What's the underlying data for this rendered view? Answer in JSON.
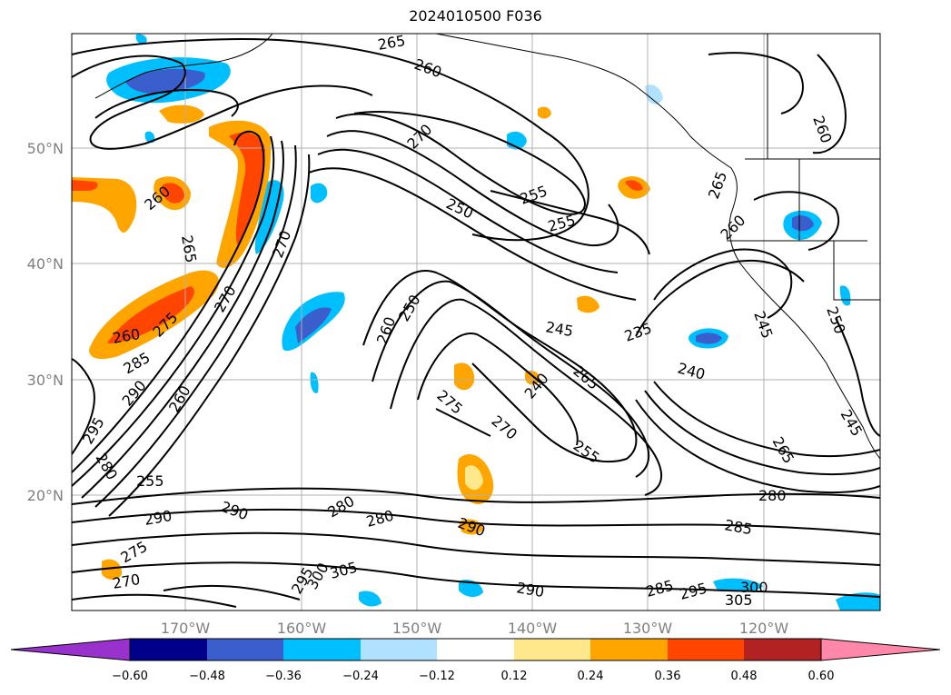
{
  "title": "2024010500 F036",
  "axes": {
    "lat_labels": [
      "50°N",
      "40°N",
      "30°N",
      "20°N"
    ],
    "lon_labels": [
      "170°W",
      "160°W",
      "150°W",
      "140°W",
      "130°W",
      "120°W"
    ]
  },
  "colorbar": {
    "ticks": [
      "−0.60",
      "−0.48",
      "−0.36",
      "−0.24",
      "−0.12",
      "0.12",
      "0.24",
      "0.36",
      "0.48",
      "0.60"
    ],
    "colors": [
      "#9932cc",
      "#00008b",
      "#3a5fcd",
      "#00bfff",
      "#b0e2ff",
      "#ffffff",
      "#ffe88c",
      "#ffa500",
      "#ff4500",
      "#b22222",
      "#ff88aa"
    ]
  },
  "contour_labels": [
    {
      "text": "265"
    },
    {
      "text": "260"
    },
    {
      "text": "260"
    },
    {
      "text": "270"
    },
    {
      "text": "255"
    },
    {
      "text": "250"
    },
    {
      "text": "255"
    },
    {
      "text": "260"
    },
    {
      "text": "265"
    },
    {
      "text": "260"
    },
    {
      "text": "265"
    },
    {
      "text": "270"
    },
    {
      "text": "270"
    },
    {
      "text": "260"
    },
    {
      "text": "275"
    },
    {
      "text": "285"
    },
    {
      "text": "290"
    },
    {
      "text": "295"
    },
    {
      "text": "280"
    },
    {
      "text": "255"
    },
    {
      "text": "260"
    },
    {
      "text": "250"
    },
    {
      "text": "260"
    },
    {
      "text": "245"
    },
    {
      "text": "240"
    },
    {
      "text": "265"
    },
    {
      "text": "275"
    },
    {
      "text": "270"
    },
    {
      "text": "255"
    },
    {
      "text": "235"
    },
    {
      "text": "240"
    },
    {
      "text": "245"
    },
    {
      "text": "250"
    },
    {
      "text": "265"
    },
    {
      "text": "245"
    },
    {
      "text": "280"
    },
    {
      "text": "285"
    },
    {
      "text": "290"
    },
    {
      "text": "290"
    },
    {
      "text": "280"
    },
    {
      "text": "280"
    },
    {
      "text": "290"
    },
    {
      "text": "275"
    },
    {
      "text": "270"
    },
    {
      "text": "295"
    },
    {
      "text": "300"
    },
    {
      "text": "305"
    },
    {
      "text": "290"
    },
    {
      "text": "285"
    },
    {
      "text": "295"
    },
    {
      "text": "300"
    },
    {
      "text": "305"
    }
  ]
}
